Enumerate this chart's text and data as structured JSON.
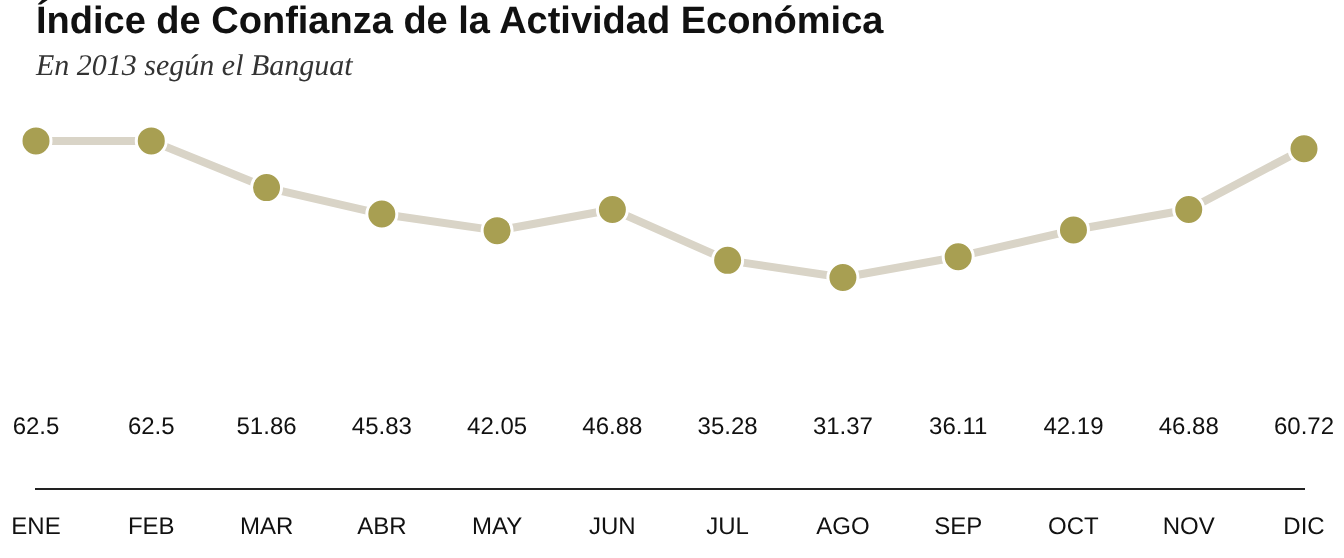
{
  "chart_data": {
    "type": "line",
    "title": "Índice de Confianza de la Actividad Económica",
    "subtitle": "En 2013 según el Banguat",
    "categories": [
      "ENE",
      "FEB",
      "MAR",
      "ABR",
      "MAY",
      "JUN",
      "JUL",
      "AGO",
      "SEP",
      "OCT",
      "NOV",
      "DIC"
    ],
    "series": [
      {
        "color": "#a89f52",
        "values": [
          62.5,
          62.5,
          51.86,
          45.83,
          42.05,
          46.88,
          35.28,
          31.37,
          36.11,
          42.19,
          46.88,
          60.72
        ]
      }
    ],
    "data_labels": true,
    "marker": "circle",
    "grid": false,
    "legend": false,
    "tick_labels": "x"
  }
}
